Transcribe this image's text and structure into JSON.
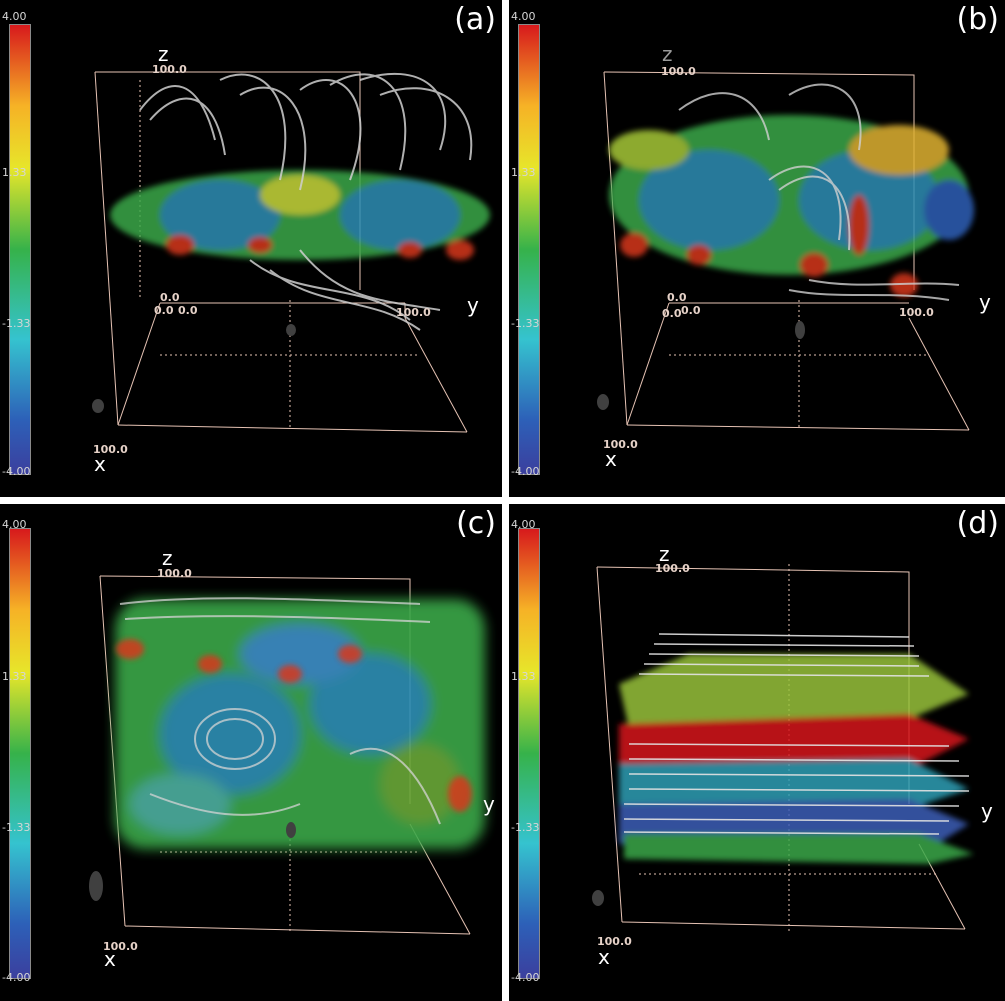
{
  "colorbar": {
    "max": "4.00",
    "upper": "1.33",
    "lower": "-1.33",
    "min": "-4.00",
    "colors": [
      "#d7191c",
      "#f6b226",
      "#e7e62a",
      "#36b24a",
      "#35c3cf",
      "#2d60b8",
      "#3b3f9e"
    ]
  },
  "axes": {
    "z": "z",
    "y": "y",
    "x": "x"
  },
  "ticks": {
    "z_top": "100.0",
    "origin_a": "0.0",
    "origin_b": "0.0",
    "origin_c": "0.0",
    "y_end": "100.0",
    "x_end": "100.0"
  },
  "panels": [
    {
      "tag": "(a)",
      "has_origin_ticks": true
    },
    {
      "tag": "(b)",
      "has_origin_ticks": true
    },
    {
      "tag": "(c)",
      "has_origin_ticks": false
    },
    {
      "tag": "(d)",
      "has_origin_ticks": false
    }
  ]
}
